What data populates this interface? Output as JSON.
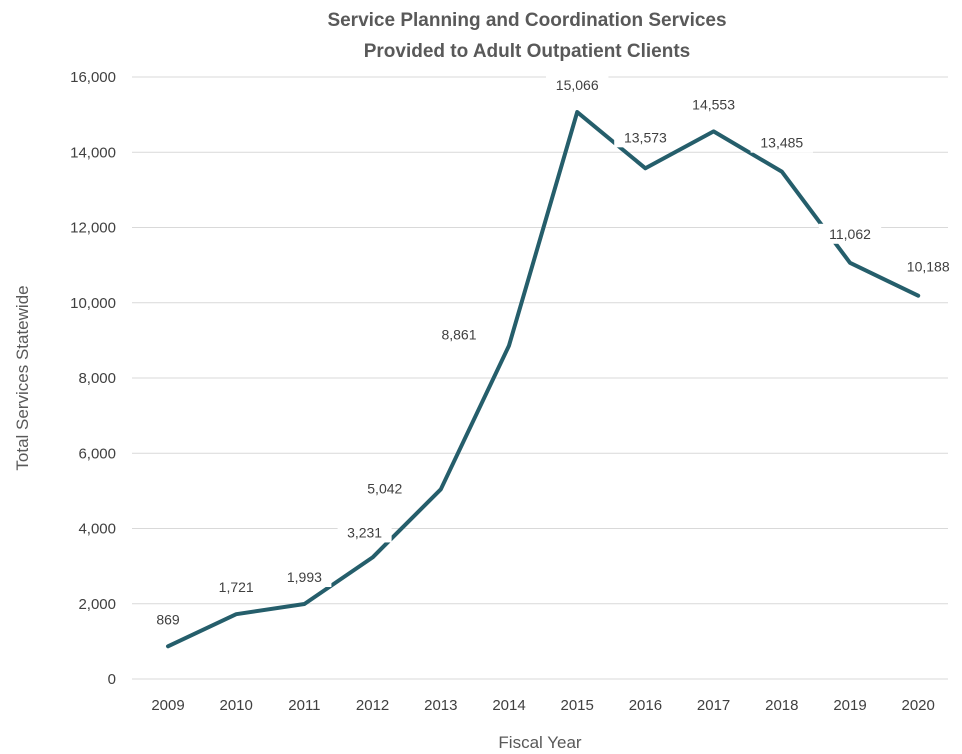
{
  "chart_data": {
    "type": "line",
    "title": [
      "Service Planning and Coordination Services",
      "Provided to Adult Outpatient Clients"
    ],
    "xlabel": "Fiscal Year",
    "ylabel": "Total Services Statewide",
    "categories": [
      "2009",
      "2010",
      "2011",
      "2012",
      "2013",
      "2014",
      "2015",
      "2016",
      "2017",
      "2018",
      "2019",
      "2020"
    ],
    "values": [
      869,
      1721,
      1993,
      3231,
      5042,
      8861,
      15066,
      13573,
      14553,
      13485,
      11062,
      10188
    ],
    "data_labels": [
      "869",
      "1,721",
      "1,993",
      "3,231",
      "5,042",
      "8,861",
      "15,066",
      "13,573",
      "14,553",
      "13,485",
      "11,062",
      "10,188"
    ],
    "ylim": [
      0,
      16000
    ],
    "yticks": [
      0,
      2000,
      4000,
      6000,
      8000,
      10000,
      12000,
      14000,
      16000
    ],
    "ytick_labels": [
      "0",
      "2,000",
      "4,000",
      "6,000",
      "8,000",
      "10,000",
      "12,000",
      "14,000",
      "16,000"
    ],
    "grid": true,
    "legend": false,
    "colors": {
      "line": "#255e6b",
      "grid": "#d9d9d9",
      "text": "#595959"
    }
  }
}
